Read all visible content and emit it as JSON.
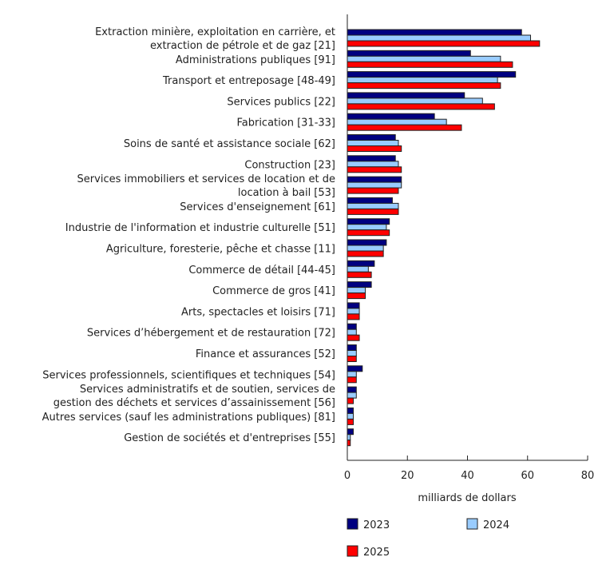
{
  "chart_data": {
    "type": "bar",
    "orientation": "horizontal",
    "categories": [
      [
        "Extraction minière, exploitation en carrière, et",
        "extraction de pétrole et de gaz [21]"
      ],
      [
        "Administrations publiques [91]"
      ],
      [
        "Transport et entreposage [48-49]"
      ],
      [
        "Services publics [22]"
      ],
      [
        "Fabrication [31-33]"
      ],
      [
        "Soins de santé et assistance sociale [62]"
      ],
      [
        "Construction [23]"
      ],
      [
        "Services immobiliers et services de location et de",
        "location à bail [53]"
      ],
      [
        "Services d'enseignement [61]"
      ],
      [
        "Industrie de l'information et industrie culturelle [51]"
      ],
      [
        "Agriculture, foresterie, pêche et chasse [11]"
      ],
      [
        "Commerce de détail [44-45]"
      ],
      [
        "Commerce de gros [41]"
      ],
      [
        "Arts, spectacles et loisirs [71]"
      ],
      [
        "Services d’hébergement et de restauration [72]"
      ],
      [
        "Finance et assurances [52]"
      ],
      [
        "Services professionnels, scientifiques et techniques [54]"
      ],
      [
        "Services administratifs et de soutien, services de",
        "gestion des déchets et services d’assainissement [56]"
      ],
      [
        "Autres services (sauf les administrations publiques) [81]"
      ],
      [
        "Gestion de sociétés et d'entreprises [55]"
      ]
    ],
    "series": [
      {
        "name": "2023",
        "color": "#000080",
        "values": [
          58,
          41,
          56,
          39,
          29,
          16,
          16,
          18,
          15,
          14,
          13,
          9,
          8,
          4,
          3,
          3,
          5,
          3,
          2,
          2
        ]
      },
      {
        "name": "2024",
        "color": "#99ccff",
        "values": [
          61,
          51,
          50,
          45,
          33,
          17,
          17,
          18,
          17,
          13,
          12,
          7,
          6,
          4,
          3,
          3,
          3,
          3,
          2,
          1
        ]
      },
      {
        "name": "2025",
        "color": "#ff0000",
        "values": [
          64,
          55,
          51,
          49,
          38,
          18,
          18,
          17,
          17,
          14,
          12,
          8,
          6,
          4,
          4,
          3,
          3,
          2,
          2,
          1
        ]
      }
    ],
    "xlabel": "milliards de dollars",
    "xlim": [
      0,
      80
    ],
    "xticks": [
      0,
      20,
      40,
      60,
      80
    ],
    "grid": false,
    "legend_position": "bottom"
  }
}
